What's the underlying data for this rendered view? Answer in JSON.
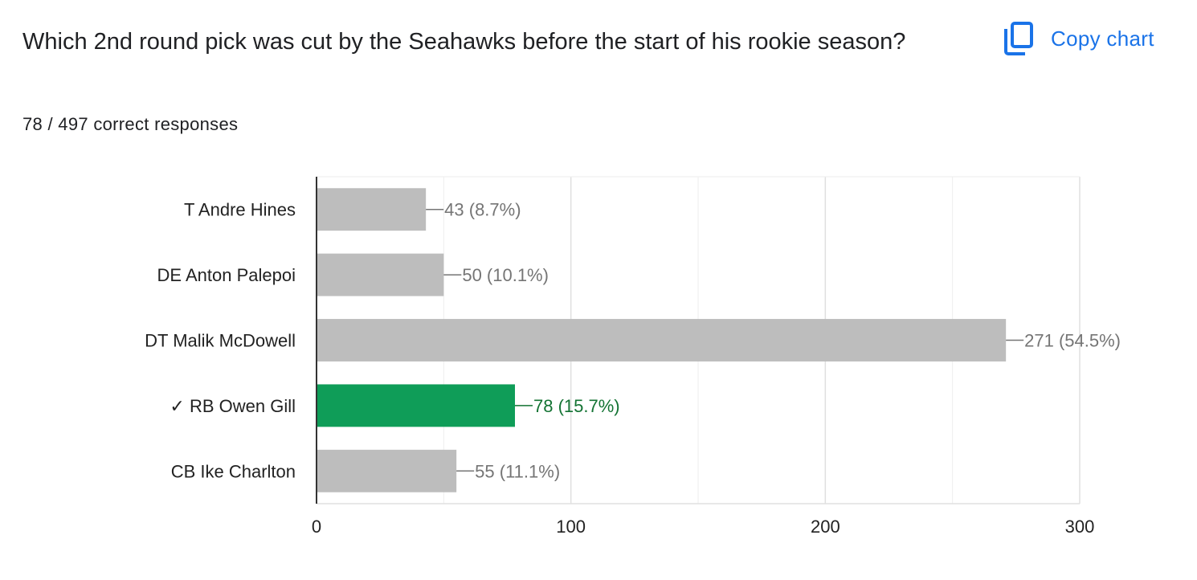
{
  "question": {
    "title": "Which 2nd round pick was cut by the Seahawks before the start of his rookie season?",
    "summary": "78 / 497 correct responses"
  },
  "toolbar": {
    "copy_label": "Copy chart",
    "copy_icon": "copy-icon"
  },
  "colors": {
    "accent": "#1a73e8",
    "bar_default": "#bdbdbd",
    "bar_correct": "#0f9d58",
    "label_default": "#757575",
    "label_correct": "#137333"
  },
  "chart_data": {
    "type": "bar",
    "orientation": "horizontal",
    "categories": [
      "T Andre Hines",
      "DE Anton Palepoi",
      "DT Malik McDowell",
      "✓ RB Owen Gill",
      "CB Ike Charlton"
    ],
    "values": [
      43,
      50,
      271,
      78,
      55
    ],
    "data_labels": [
      "43 (8.7%)",
      "50 (10.1%)",
      "271 (54.5%)",
      "78 (15.7%)",
      "55 (11.1%)"
    ],
    "correct_index": 3,
    "xlim": [
      0,
      300
    ],
    "xticks": [
      0,
      100,
      200,
      300
    ],
    "grid": true,
    "title": "",
    "xlabel": "",
    "ylabel": ""
  }
}
